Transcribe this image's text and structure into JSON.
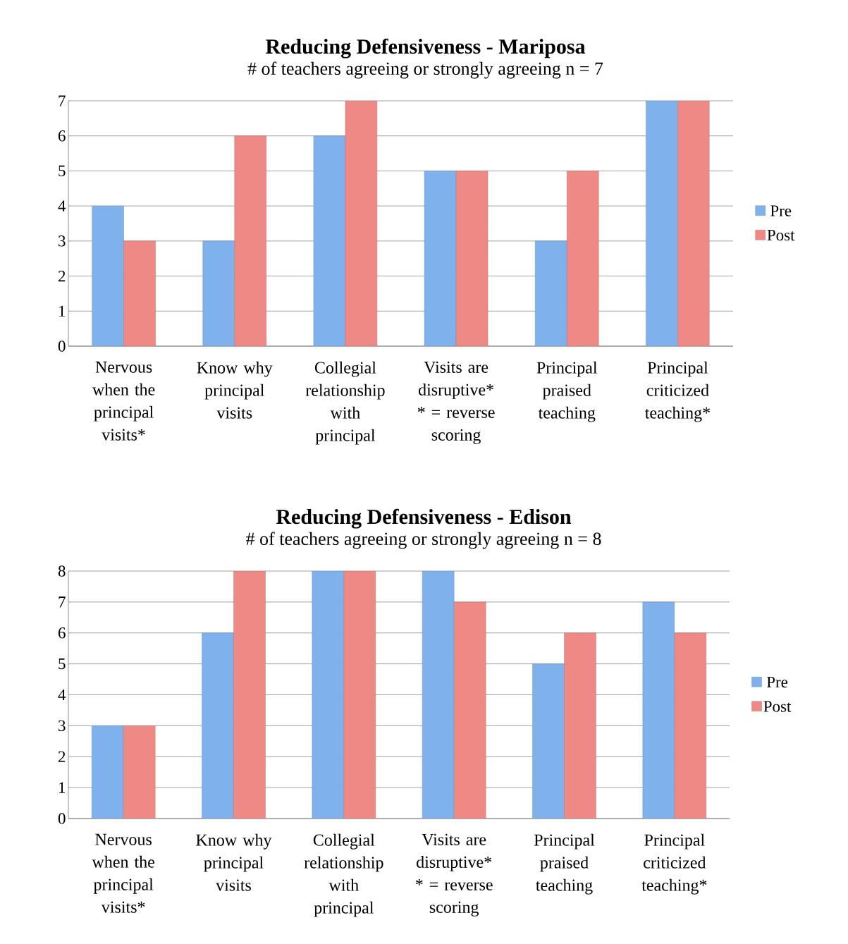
{
  "chart_data": [
    {
      "type": "bar",
      "title": "Reducing Defensiveness - Mariposa",
      "subtitle": "# of teachers agreeing or strongly agreeing  n = 7",
      "categories": [
        "Nervous when the principal visits*",
        "Know why principal visits",
        "Collegial relationship with principal",
        "Visits are disruptive* * = reverse scoring",
        "Principal praised teaching",
        "Principal criticized teaching*"
      ],
      "series": [
        {
          "name": "Pre",
          "color": "#7fb1ec",
          "values": [
            4,
            3,
            6,
            5,
            3,
            7
          ]
        },
        {
          "name": "Post",
          "color": "#ee8985",
          "values": [
            3,
            6,
            7,
            5,
            5,
            7
          ]
        }
      ],
      "ylim": [
        0,
        7
      ],
      "yticks": [
        0,
        1,
        2,
        3,
        4,
        5,
        6,
        7
      ],
      "grid": "y",
      "legend": "right"
    },
    {
      "type": "bar",
      "title": "Reducing Defensiveness - Edison",
      "subtitle": "# of teachers agreeing or strongly agreeing n = 8",
      "categories": [
        "Nervous when the principal visits*",
        "Know why principal visits",
        "Collegial relationship with principal",
        "Visits are disruptive* * = reverse scoring",
        "Principal praised teaching",
        "Principal criticized teaching*"
      ],
      "series": [
        {
          "name": "Pre",
          "color": "#7fb1ec",
          "values": [
            3,
            6,
            8,
            8,
            5,
            7
          ]
        },
        {
          "name": "Post",
          "color": "#ee8985",
          "values": [
            3,
            8,
            8,
            7,
            6,
            6
          ]
        }
      ],
      "ylim": [
        0,
        8
      ],
      "yticks": [
        0,
        1,
        2,
        3,
        4,
        5,
        6,
        7,
        8
      ],
      "grid": "y",
      "legend": "right"
    }
  ]
}
